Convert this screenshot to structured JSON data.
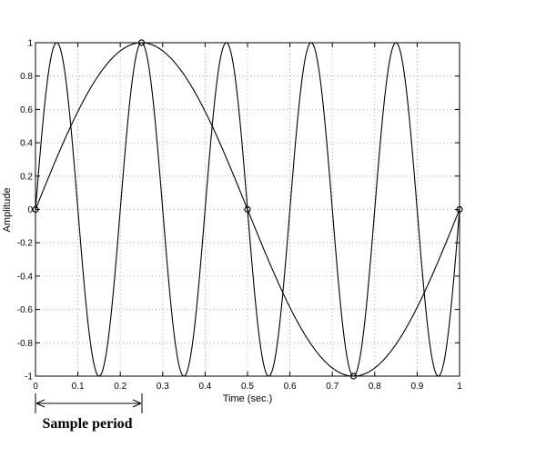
{
  "chart_data": {
    "type": "line",
    "title": "",
    "xlabel": "Time (sec.)",
    "ylabel": "Amplitude",
    "xlim": [
      0,
      1
    ],
    "ylim": [
      -1,
      1
    ],
    "grid": true,
    "x_ticks": [
      0,
      0.1,
      0.2,
      0.3,
      0.4,
      0.5,
      0.6,
      0.7,
      0.8,
      0.9,
      1
    ],
    "x_tick_labels": [
      "0",
      "0.1",
      "0.2",
      "0.3",
      "0.4",
      "0.5",
      "0.6",
      "0.7",
      "0.8",
      "0.9",
      "1"
    ],
    "y_ticks": [
      -1,
      -0.8,
      -0.6,
      -0.4,
      -0.2,
      0,
      0.2,
      0.4,
      0.6,
      0.8,
      1
    ],
    "y_tick_labels": [
      "-1",
      "-0.8",
      "-0.6",
      "-0.4",
      "-0.2",
      "0",
      "0.2",
      "0.4",
      "0.6",
      "0.8",
      "1"
    ],
    "series": [
      {
        "frequency_hz": 1,
        "function": "sin(2*pi*f*t)"
      },
      {
        "frequency_hz": 5,
        "function": "sin(2*pi*f*t)"
      }
    ],
    "sample_points": {
      "x": [
        0,
        0.25,
        0.5,
        0.75,
        1
      ],
      "y": [
        0,
        1,
        0,
        -1,
        0
      ]
    },
    "annotation": {
      "text": "Sample period",
      "x_start": 0,
      "x_end": 0.25
    },
    "colors": {
      "line": "#000000",
      "grid": "#9a9a9a",
      "background": "#ffffff"
    }
  }
}
